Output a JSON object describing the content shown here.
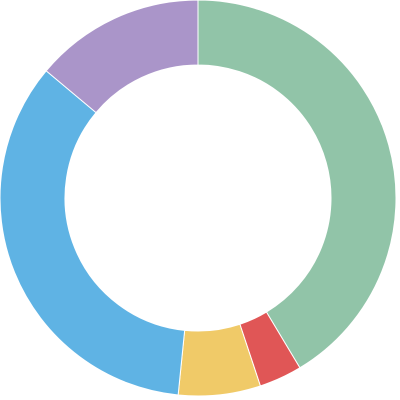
{
  "chart_data": {
    "type": "donut",
    "values": [
      41.4,
      3.5,
      6.7,
      34.5,
      13.9
    ],
    "colors": [
      "#91c4a8",
      "#e05656",
      "#f0ca68",
      "#5fb3e4",
      "#aa95c9"
    ]
  }
}
